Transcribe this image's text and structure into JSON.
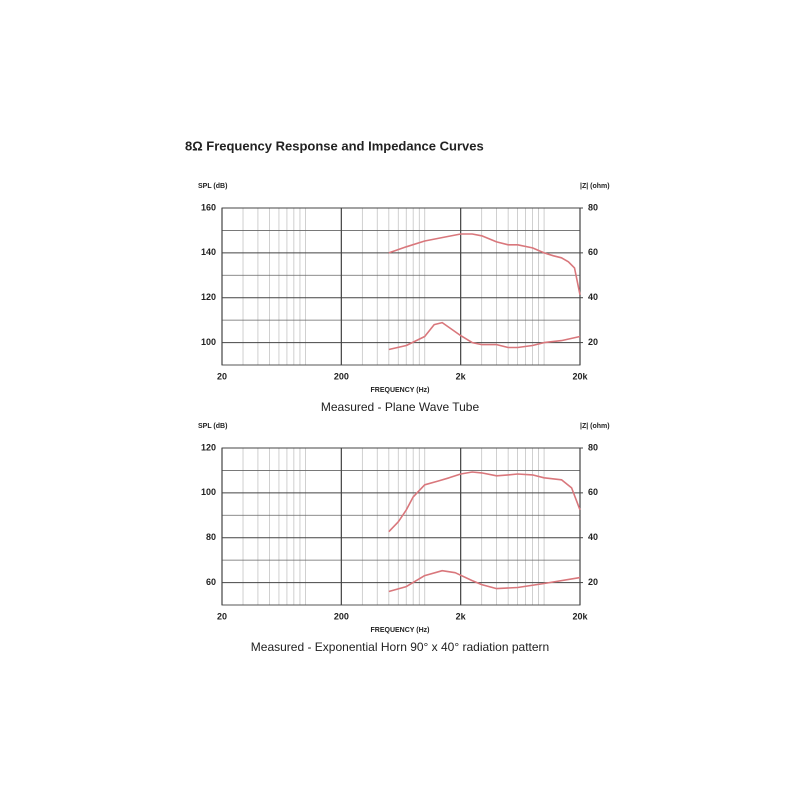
{
  "title": "8Ω Frequency Response and Impedance Curves",
  "chart_data": [
    {
      "type": "line",
      "subtitle": "Measured - Plane Wave Tube",
      "xlabel": "FREQUENCY (Hz)",
      "ylabel": "SPL (dB)",
      "y2label": "|Z| (ohm)",
      "xscale": "log",
      "xlim": [
        20,
        20000
      ],
      "xticks": [
        20,
        200,
        {
          "value": 2000,
          "label": "2k"
        },
        {
          "value": 20000,
          "label": "20k"
        }
      ],
      "ylim": [
        90,
        160
      ],
      "yticks": [
        100,
        120,
        140,
        160
      ],
      "y2lim": [
        10,
        80
      ],
      "y2ticks": [
        20,
        40,
        60,
        80
      ],
      "grid": true,
      "minor_grid": true,
      "series": [
        {
          "color": "#d9777c",
          "x": [
            500,
            700,
            1000,
            1500,
            2000,
            2500,
            3000,
            4000,
            5000,
            6000,
            8000,
            10000,
            12000,
            14000,
            16000,
            18000,
            20000
          ],
          "values": [
            140,
            142.7,
            145.3,
            147.1,
            148.4,
            148.4,
            147.6,
            144.9,
            143.6,
            143.6,
            142.2,
            140,
            138.7,
            137.8,
            136,
            133.3,
            121.3
          ]
        },
        {
          "color": "#d9777c",
          "axis": "y2",
          "x": [
            500,
            700,
            1000,
            1200,
            1400,
            1700,
            2000,
            2500,
            3000,
            4000,
            5000,
            6000,
            8000,
            10000,
            14000,
            20000
          ],
          "values": [
            16.9,
            18.7,
            22.7,
            28,
            28.9,
            25.8,
            23.1,
            20,
            19.1,
            19.1,
            17.8,
            17.8,
            18.7,
            20,
            20.9,
            22.7
          ]
        }
      ]
    },
    {
      "type": "line",
      "subtitle": "Measured - Exponential Horn 90° x 40° radiation pattern",
      "xlabel": "FREQUENCY (Hz)",
      "ylabel": "SPL (dB)",
      "y2label": "|Z| (ohm)",
      "xscale": "log",
      "xlim": [
        20,
        20000
      ],
      "xticks": [
        20,
        200,
        {
          "value": 2000,
          "label": "2k"
        },
        {
          "value": 20000,
          "label": "20k"
        }
      ],
      "ylim": [
        50,
        120
      ],
      "yticks": [
        60,
        80,
        100,
        120
      ],
      "y2lim": [
        10,
        80
      ],
      "y2ticks": [
        20,
        40,
        60,
        80
      ],
      "grid": true,
      "minor_grid": true,
      "series": [
        {
          "color": "#d9777c",
          "x": [
            500,
            600,
            700,
            800,
            1000,
            1300,
            1600,
            2000,
            2500,
            3000,
            4000,
            5000,
            6000,
            8000,
            10000,
            14000,
            17000,
            20000
          ],
          "values": [
            82.7,
            87.1,
            92.4,
            98.2,
            103.6,
            105.3,
            106.7,
            108.4,
            109.3,
            108.9,
            107.6,
            108,
            108.4,
            108,
            106.7,
            105.8,
            102.2,
            92.4
          ]
        },
        {
          "color": "#d9777c",
          "axis": "y2",
          "x": [
            500,
            700,
            1000,
            1400,
            1800,
            2500,
            3000,
            4000,
            6000,
            10000,
            20000
          ],
          "values": [
            16,
            18.2,
            23.1,
            25.3,
            24.4,
            20.9,
            19.1,
            17.3,
            17.8,
            19.6,
            22.2
          ]
        }
      ]
    }
  ]
}
